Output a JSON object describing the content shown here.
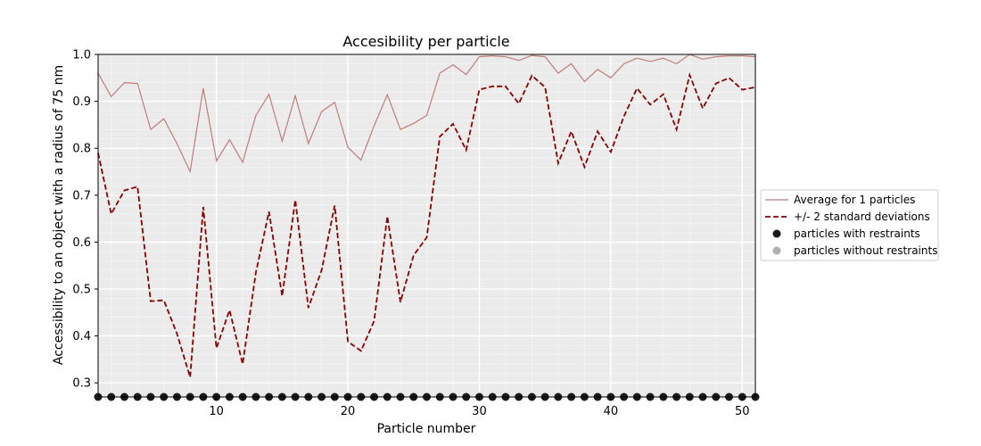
{
  "chart_data": {
    "type": "line",
    "title": "Accesibility per particle",
    "xlabel": "Particle number",
    "ylabel": "Accessibility to an object with a radius of 75 nm",
    "xlim": [
      1,
      51
    ],
    "ylim": [
      0.27,
      1.0
    ],
    "xticks": [
      10,
      20,
      30,
      40,
      50
    ],
    "yticks": [
      0.3,
      0.4,
      0.5,
      0.6,
      0.7,
      0.8,
      0.9,
      1.0
    ],
    "grid": true,
    "legend_position": "right",
    "colors": {
      "average": "#c07c7c",
      "stddev": "#8b0000",
      "with_restraints": "#1a1a1a",
      "without_restraints": "#b0b0b0",
      "plot_background": "#ebebeb",
      "grid": "#ffffff"
    },
    "x": [
      1,
      2,
      3,
      4,
      5,
      6,
      7,
      8,
      9,
      10,
      11,
      12,
      13,
      14,
      15,
      16,
      17,
      18,
      19,
      20,
      21,
      22,
      23,
      24,
      25,
      26,
      27,
      28,
      29,
      30,
      31,
      32,
      33,
      34,
      35,
      36,
      37,
      38,
      39,
      40,
      41,
      42,
      43,
      44,
      45,
      46,
      47,
      48,
      49,
      50,
      51
    ],
    "series": [
      {
        "name": "Average for 1 particles",
        "style": "solid",
        "values": [
          0.96,
          0.91,
          0.94,
          0.938,
          0.84,
          0.863,
          0.81,
          0.75,
          0.928,
          0.773,
          0.818,
          0.77,
          0.87,
          0.915,
          0.815,
          0.912,
          0.81,
          0.878,
          0.898,
          0.802,
          0.775,
          0.848,
          0.914,
          0.84,
          0.853,
          0.87,
          0.96,
          0.978,
          0.957,
          0.995,
          0.997,
          0.995,
          0.987,
          0.998,
          0.995,
          0.96,
          0.98,
          0.942,
          0.968,
          0.95,
          0.98,
          0.992,
          0.985,
          0.992,
          0.98,
          1.0,
          0.99,
          0.995,
          0.997,
          0.997,
          0.995
        ]
      },
      {
        "name": "+/- 2 standard deviations",
        "style": "dashed",
        "values": [
          0.79,
          0.66,
          0.71,
          0.718,
          0.474,
          0.476,
          0.405,
          0.312,
          0.675,
          0.374,
          0.455,
          0.34,
          0.535,
          0.665,
          0.485,
          0.69,
          0.46,
          0.54,
          0.678,
          0.388,
          0.368,
          0.432,
          0.655,
          0.472,
          0.572,
          0.61,
          0.825,
          0.852,
          0.796,
          0.925,
          0.932,
          0.932,
          0.895,
          0.955,
          0.93,
          0.768,
          0.836,
          0.76,
          0.836,
          0.792,
          0.868,
          0.928,
          0.893,
          0.915,
          0.84,
          0.956,
          0.885,
          0.938,
          0.95,
          0.925,
          0.93
        ]
      }
    ],
    "markers": {
      "y": 0.27,
      "with_restraints_x": [
        1,
        2,
        3,
        4,
        5,
        6,
        7,
        8,
        9,
        10,
        11,
        12,
        13,
        14,
        15,
        16,
        17,
        18,
        19,
        20,
        21,
        22,
        23,
        24,
        25,
        26,
        27,
        28,
        29,
        30,
        31,
        32,
        33,
        34,
        35,
        36,
        37,
        38,
        39,
        40,
        41,
        42,
        43,
        44,
        45,
        46,
        47,
        48,
        49,
        50,
        51
      ],
      "without_restraints_x": []
    },
    "legend": [
      {
        "label": "Average for 1 particles",
        "kind": "line-solid",
        "color": "#c07c7c"
      },
      {
        "label": "+/- 2 standard deviations",
        "kind": "line-dashed",
        "color": "#8b0000"
      },
      {
        "label": "particles with restraints",
        "kind": "marker",
        "color": "#1a1a1a"
      },
      {
        "label": "particles without restraints",
        "kind": "marker",
        "color": "#b0b0b0"
      }
    ]
  }
}
